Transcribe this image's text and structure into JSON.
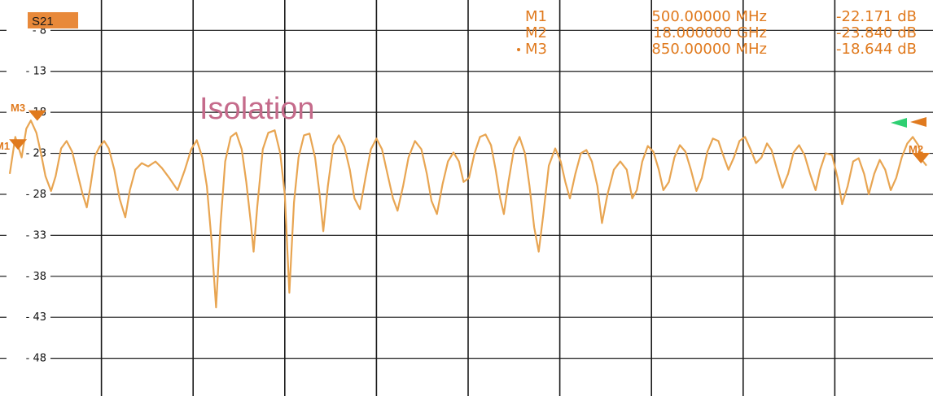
{
  "trace_badge": "S21",
  "annotation": "Isolation",
  "markers": [
    {
      "id": "M1",
      "freq": "500.00000 MHz",
      "value": "-22.171 dB",
      "active": false
    },
    {
      "id": "M2",
      "freq": "18.000000 GHz",
      "value": "-23.840 dB",
      "active": false
    },
    {
      "id": "M3",
      "freq": "850.00000 MHz",
      "value": "-18.644 dB",
      "active": true
    }
  ],
  "marker_labels": {
    "m3": "M3",
    "m1": "M1",
    "m2": "M2"
  },
  "chart_data": {
    "type": "line",
    "title": "",
    "xlabel": "",
    "ylabel": "",
    "y_ticks": [
      "-8",
      "-13",
      "-18",
      "-23",
      "-28",
      "-33",
      "-38",
      "-43",
      "-48"
    ],
    "ylim": [
      -52.6,
      -4.3
    ],
    "x_range": [
      0,
      100
    ],
    "x_divisions": 10,
    "grid": true,
    "colors": {
      "trace": "#e8a552",
      "marker": "#e07a1e",
      "ref_green": "#2ecf72",
      "grid": "#1a1a1a"
    },
    "series": [
      {
        "values": [
          [
            0.0,
            -25.5
          ],
          [
            0.6,
            -21.0
          ],
          [
            1.3,
            -23.5
          ],
          [
            1.8,
            -20.0
          ],
          [
            2.3,
            -19.0
          ],
          [
            2.9,
            -20.5
          ],
          [
            3.4,
            -23.0
          ],
          [
            3.9,
            -25.8
          ],
          [
            4.5,
            -27.6
          ],
          [
            5.0,
            -25.8
          ],
          [
            5.6,
            -22.4
          ],
          [
            6.2,
            -21.5
          ],
          [
            6.8,
            -22.8
          ],
          [
            7.4,
            -25.5
          ],
          [
            7.9,
            -27.8
          ],
          [
            8.4,
            -29.6
          ],
          [
            8.8,
            -27.0
          ],
          [
            9.3,
            -23.3
          ],
          [
            9.8,
            -22.2
          ],
          [
            10.3,
            -21.5
          ],
          [
            10.8,
            -22.4
          ],
          [
            11.4,
            -25.0
          ],
          [
            12.0,
            -28.6
          ],
          [
            12.6,
            -30.8
          ],
          [
            13.1,
            -27.5
          ],
          [
            13.7,
            -25.0
          ],
          [
            14.4,
            -24.2
          ],
          [
            15.1,
            -24.6
          ],
          [
            15.9,
            -24.0
          ],
          [
            16.6,
            -24.8
          ],
          [
            17.4,
            -26.0
          ],
          [
            18.3,
            -27.5
          ],
          [
            19.1,
            -25.0
          ],
          [
            19.8,
            -22.5
          ],
          [
            20.4,
            -21.4
          ],
          [
            21.0,
            -23.5
          ],
          [
            21.5,
            -27.0
          ],
          [
            22.0,
            -33.5
          ],
          [
            22.5,
            -41.8
          ],
          [
            23.0,
            -31.5
          ],
          [
            23.5,
            -24.0
          ],
          [
            24.1,
            -21.0
          ],
          [
            24.7,
            -20.5
          ],
          [
            25.3,
            -22.5
          ],
          [
            25.8,
            -26.5
          ],
          [
            26.3,
            -31.5
          ],
          [
            26.6,
            -35.0
          ],
          [
            27.0,
            -29.5
          ],
          [
            27.6,
            -22.5
          ],
          [
            28.2,
            -20.5
          ],
          [
            28.9,
            -20.2
          ],
          [
            29.5,
            -23.0
          ],
          [
            30.0,
            -28.0
          ],
          [
            30.5,
            -40.0
          ],
          [
            31.0,
            -29.0
          ],
          [
            31.5,
            -23.5
          ],
          [
            32.1,
            -20.8
          ],
          [
            32.7,
            -20.6
          ],
          [
            33.3,
            -23.5
          ],
          [
            33.8,
            -28.0
          ],
          [
            34.2,
            -32.5
          ],
          [
            34.7,
            -27.0
          ],
          [
            35.3,
            -22.0
          ],
          [
            35.9,
            -20.8
          ],
          [
            36.5,
            -22.2
          ],
          [
            37.1,
            -25.0
          ],
          [
            37.6,
            -28.5
          ],
          [
            38.2,
            -29.8
          ],
          [
            38.8,
            -26.0
          ],
          [
            39.4,
            -22.5
          ],
          [
            40.0,
            -21.2
          ],
          [
            40.6,
            -22.5
          ],
          [
            41.2,
            -25.5
          ],
          [
            41.8,
            -28.5
          ],
          [
            42.3,
            -30.0
          ],
          [
            42.9,
            -27.0
          ],
          [
            43.5,
            -23.5
          ],
          [
            44.2,
            -21.5
          ],
          [
            44.9,
            -22.5
          ],
          [
            45.5,
            -25.5
          ],
          [
            46.0,
            -28.8
          ],
          [
            46.6,
            -30.4
          ],
          [
            47.2,
            -26.8
          ],
          [
            47.8,
            -24.0
          ],
          [
            48.4,
            -22.9
          ],
          [
            49.0,
            -24.0
          ],
          [
            49.5,
            -26.5
          ],
          [
            50.1,
            -26.0
          ],
          [
            50.7,
            -23.0
          ],
          [
            51.3,
            -21.0
          ],
          [
            51.9,
            -20.7
          ],
          [
            52.5,
            -22.0
          ],
          [
            53.0,
            -25.0
          ],
          [
            53.5,
            -28.5
          ],
          [
            53.9,
            -30.4
          ],
          [
            54.4,
            -26.5
          ],
          [
            55.0,
            -22.5
          ],
          [
            55.6,
            -21.0
          ],
          [
            56.2,
            -23.0
          ],
          [
            56.7,
            -27.0
          ],
          [
            57.2,
            -32.0
          ],
          [
            57.7,
            -35.0
          ],
          [
            58.2,
            -30.5
          ],
          [
            58.8,
            -24.5
          ],
          [
            59.5,
            -22.4
          ],
          [
            60.1,
            -24.0
          ],
          [
            60.6,
            -26.5
          ],
          [
            61.1,
            -28.5
          ],
          [
            61.7,
            -25.5
          ],
          [
            62.3,
            -23.0
          ],
          [
            62.9,
            -22.6
          ],
          [
            63.5,
            -24.0
          ],
          [
            64.1,
            -27.0
          ],
          [
            64.6,
            -31.5
          ],
          [
            65.2,
            -28.0
          ],
          [
            65.9,
            -25.0
          ],
          [
            66.6,
            -24.0
          ],
          [
            67.3,
            -25.0
          ],
          [
            67.9,
            -28.5
          ],
          [
            68.4,
            -27.5
          ],
          [
            69.0,
            -24.0
          ],
          [
            69.6,
            -22.1
          ],
          [
            70.2,
            -22.8
          ],
          [
            70.8,
            -25.0
          ],
          [
            71.3,
            -27.5
          ],
          [
            71.9,
            -26.5
          ],
          [
            72.5,
            -23.5
          ],
          [
            73.1,
            -22.0
          ],
          [
            73.7,
            -22.8
          ],
          [
            74.3,
            -25.0
          ],
          [
            74.9,
            -27.6
          ],
          [
            75.5,
            -26.0
          ],
          [
            76.1,
            -22.8
          ],
          [
            76.7,
            -21.2
          ],
          [
            77.3,
            -21.5
          ],
          [
            77.9,
            -23.5
          ],
          [
            78.4,
            -25.0
          ],
          [
            79.0,
            -23.5
          ],
          [
            79.6,
            -21.5
          ],
          [
            80.2,
            -21.0
          ],
          [
            80.8,
            -22.5
          ],
          [
            81.4,
            -24.2
          ],
          [
            82.0,
            -23.5
          ],
          [
            82.6,
            -21.8
          ],
          [
            83.1,
            -22.6
          ],
          [
            83.7,
            -25.0
          ],
          [
            84.3,
            -27.2
          ],
          [
            84.9,
            -25.5
          ],
          [
            85.5,
            -22.9
          ],
          [
            86.1,
            -22.0
          ],
          [
            86.7,
            -23.2
          ],
          [
            87.3,
            -25.5
          ],
          [
            87.9,
            -27.5
          ],
          [
            88.4,
            -25.0
          ],
          [
            89.0,
            -23.0
          ],
          [
            89.7,
            -23.2
          ],
          [
            90.3,
            -26.0
          ],
          [
            90.8,
            -29.2
          ],
          [
            91.4,
            -27.0
          ],
          [
            92.0,
            -24.0
          ],
          [
            92.6,
            -23.6
          ],
          [
            93.2,
            -25.5
          ],
          [
            93.7,
            -28.0
          ],
          [
            94.3,
            -25.5
          ],
          [
            94.9,
            -23.8
          ],
          [
            95.5,
            -25.0
          ],
          [
            96.1,
            -27.5
          ],
          [
            96.7,
            -26.0
          ],
          [
            97.3,
            -23.5
          ],
          [
            97.9,
            -21.8
          ],
          [
            98.5,
            -21.0
          ],
          [
            99.1,
            -22.0
          ],
          [
            99.5,
            -23.8
          ],
          [
            100.0,
            -24.5
          ]
        ]
      }
    ],
    "marker_points": [
      {
        "label": "M3",
        "x": 3.0,
        "y": -18.644
      },
      {
        "label": "M1",
        "x": 0.9,
        "y": -22.171
      },
      {
        "label": "M2",
        "x": 99.4,
        "y": -23.84
      }
    ],
    "reference_level": -18.0
  }
}
